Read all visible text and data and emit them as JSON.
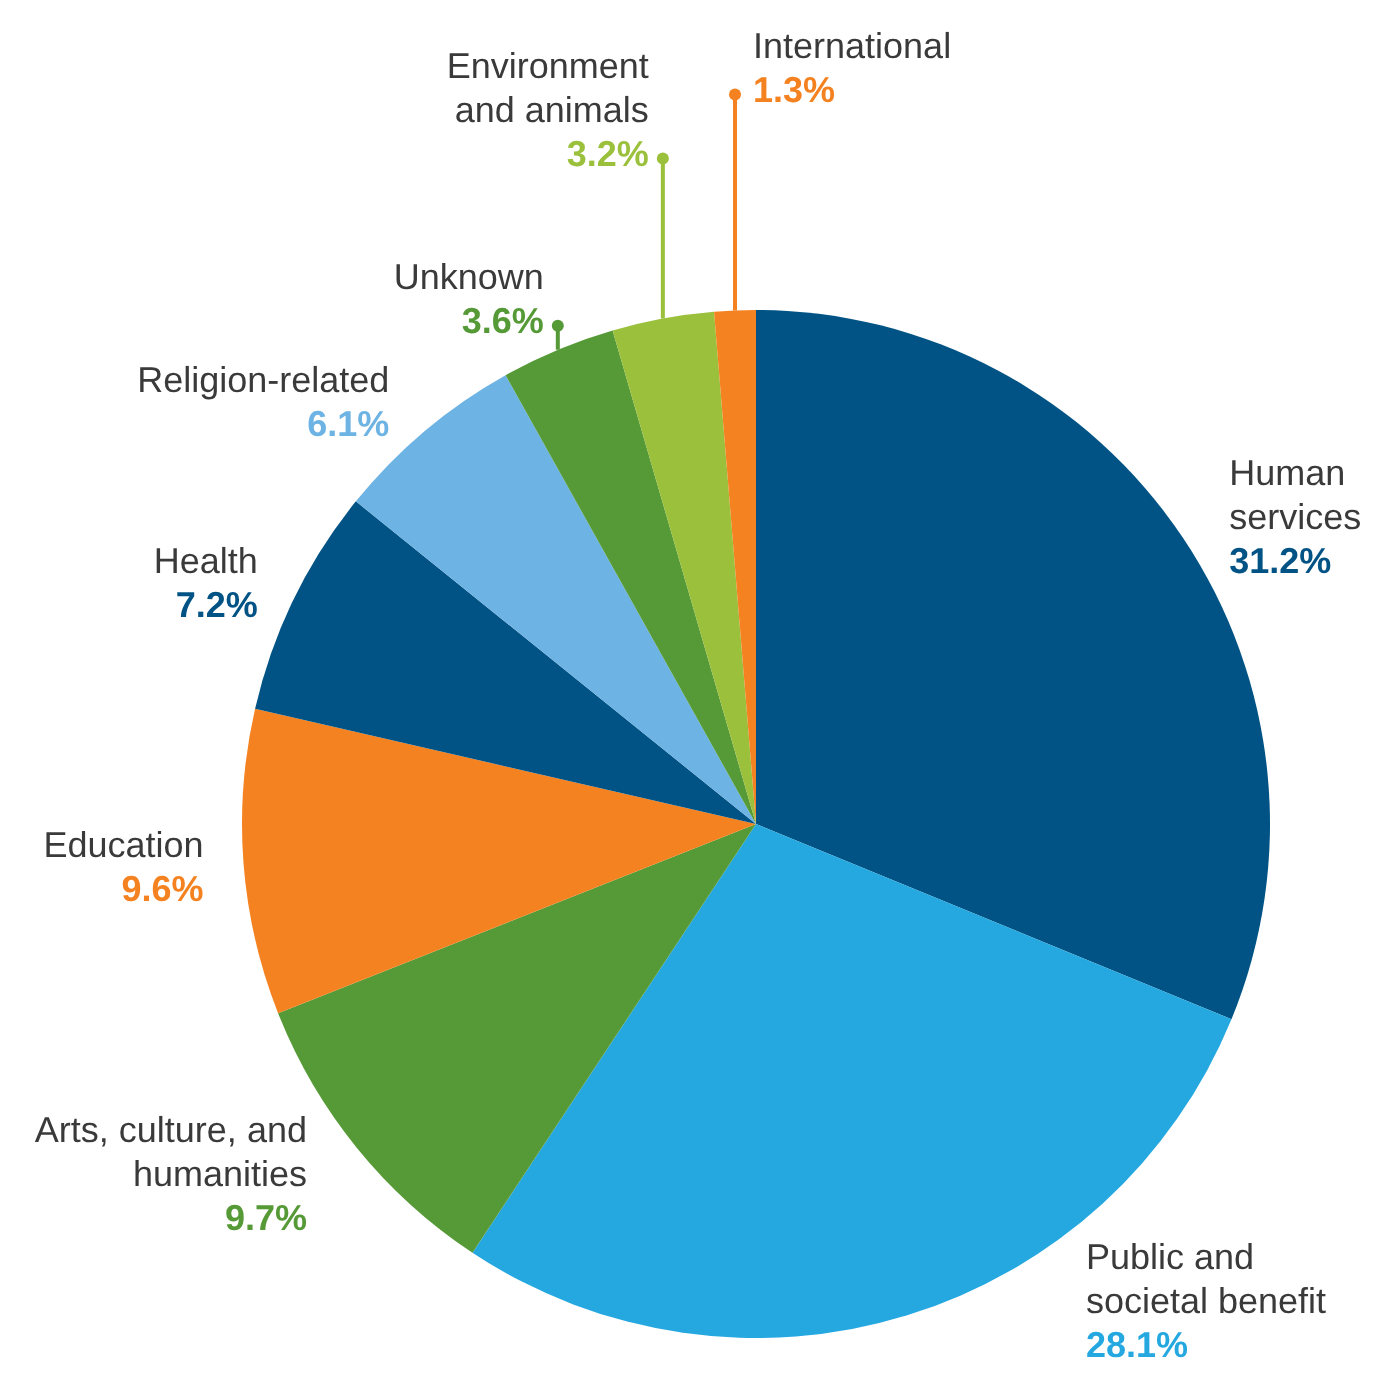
{
  "chart_data": {
    "type": "pie",
    "categories": [
      "Human\nservices",
      "Public and\nsocietal benefit",
      "Arts, culture, and\nhumanities",
      "Education",
      "Health",
      "Religion-related",
      "Unknown",
      "Environment\nand animals",
      "International"
    ],
    "values": [
      31.2,
      28.1,
      9.7,
      9.6,
      7.2,
      6.1,
      3.6,
      3.2,
      1.3
    ],
    "value_labels": [
      "31.2%",
      "28.1%",
      "9.7%",
      "9.6%",
      "7.2%",
      "6.1%",
      "3.6%",
      "3.2%",
      "1.3%"
    ],
    "colors": [
      "#005384",
      "#25a8e0",
      "#559a36",
      "#f58220",
      "#005384",
      "#6db3e3",
      "#559a36",
      "#9bc03c",
      "#f58220"
    ]
  }
}
